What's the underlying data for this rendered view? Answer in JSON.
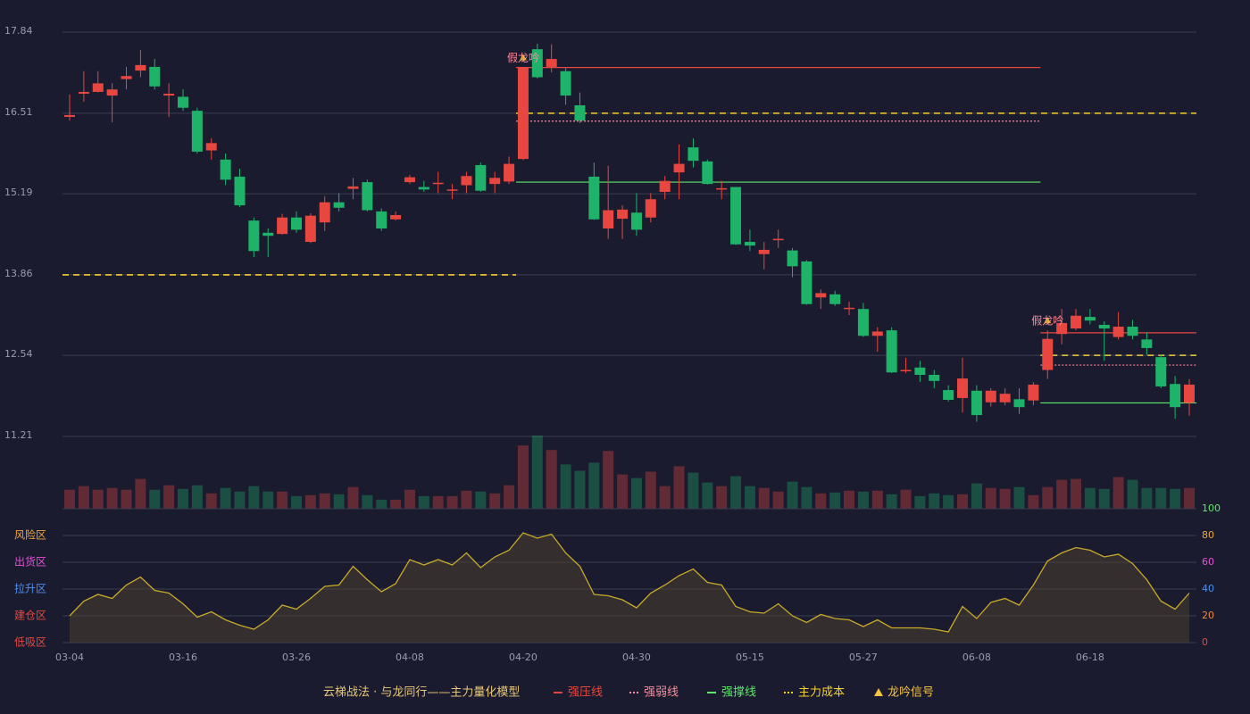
{
  "chart_data": {
    "type": "candlestick",
    "title": "云梯战法 · 与龙同行——主力量化模型",
    "categories": [
      "03-04",
      null,
      null,
      null,
      null,
      null,
      null,
      null,
      "03-16",
      null,
      null,
      null,
      null,
      null,
      null,
      null,
      "03-26",
      null,
      null,
      null,
      null,
      null,
      null,
      null,
      "04-08",
      null,
      null,
      null,
      null,
      null,
      null,
      null,
      "04-20",
      null,
      null,
      null,
      null,
      null,
      null,
      null,
      "04-30",
      null,
      null,
      null,
      null,
      null,
      null,
      null,
      "05-15",
      null,
      null,
      null,
      null,
      null,
      null,
      null,
      "05-27",
      null,
      null,
      null,
      null,
      null,
      null,
      null,
      "06-08",
      null,
      null,
      null,
      null,
      null,
      null,
      null,
      "06-18",
      null,
      null,
      null,
      null,
      null,
      null,
      null
    ],
    "up_color": "#e8473f",
    "down_color": "#1fb36a",
    "open": [
      16.45,
      16.83,
      16.86,
      16.8,
      17.07,
      17.21,
      17.27,
      16.8,
      16.78,
      16.55,
      15.9,
      15.75,
      15.47,
      14.75,
      14.55,
      14.53,
      14.8,
      14.4,
      14.72,
      15.05,
      15.27,
      15.38,
      14.9,
      14.77,
      15.38,
      15.3,
      15.36,
      15.24,
      15.33,
      15.66,
      15.35,
      15.39,
      15.76,
      17.56,
      17.27,
      17.2,
      16.64,
      15.47,
      14.62,
      14.78,
      14.88,
      14.8,
      15.22,
      15.54,
      15.95,
      15.72,
      15.26,
      15.3,
      14.4,
      14.2,
      14.44,
      14.26,
      14.08,
      13.49,
      13.54,
      13.31,
      13.3,
      12.86,
      12.95,
      12.28,
      12.34,
      12.22,
      11.97,
      11.84,
      11.96,
      11.77,
      11.77,
      11.82,
      11.8,
      12.3,
      12.89,
      12.98,
      13.17,
      13.04,
      12.84,
      13.01,
      12.8,
      12.51,
      12.07,
      11.76
    ],
    "high": [
      16.82,
      17.2,
      17.2,
      17.0,
      17.27,
      17.55,
      17.4,
      17.0,
      16.9,
      16.6,
      16.1,
      15.85,
      15.6,
      14.8,
      14.62,
      14.86,
      14.9,
      14.87,
      15.15,
      15.2,
      15.45,
      15.42,
      14.95,
      14.9,
      15.5,
      15.4,
      15.55,
      15.35,
      15.55,
      15.7,
      15.55,
      15.8,
      17.26,
      17.65,
      17.64,
      17.25,
      16.85,
      15.7,
      15.65,
      15.0,
      15.2,
      15.2,
      15.48,
      16.0,
      16.1,
      15.75,
      15.4,
      15.3,
      14.6,
      14.4,
      14.6,
      14.3,
      14.1,
      13.62,
      13.6,
      13.42,
      13.4,
      13.0,
      13.0,
      12.5,
      12.45,
      12.3,
      12.05,
      12.5,
      12.05,
      12.0,
      12.0,
      12.0,
      12.1,
      12.95,
      13.3,
      13.3,
      13.3,
      13.1,
      13.25,
      13.12,
      12.92,
      12.55,
      12.2,
      12.15
    ],
    "low": [
      16.39,
      16.7,
      16.85,
      16.36,
      16.9,
      17.1,
      16.9,
      16.45,
      16.55,
      15.85,
      15.75,
      15.33,
      14.97,
      14.15,
      14.15,
      14.52,
      14.55,
      14.38,
      14.58,
      14.9,
      15.1,
      14.9,
      14.58,
      14.75,
      15.35,
      15.22,
      15.2,
      15.1,
      15.2,
      15.22,
      15.2,
      15.35,
      15.74,
      17.08,
      17.18,
      16.65,
      16.35,
      14.76,
      14.45,
      14.45,
      14.5,
      14.72,
      15.1,
      15.1,
      15.62,
      15.34,
      15.1,
      14.35,
      14.25,
      13.95,
      14.3,
      13.82,
      13.37,
      13.3,
      13.35,
      13.2,
      12.84,
      12.6,
      12.25,
      12.25,
      12.1,
      12.0,
      11.78,
      11.6,
      11.45,
      11.7,
      11.72,
      11.58,
      11.72,
      12.15,
      12.72,
      12.95,
      13.05,
      12.45,
      12.8,
      12.8,
      12.55,
      12.0,
      11.5,
      11.55
    ],
    "close": [
      16.48,
      16.86,
      17.0,
      16.9,
      17.12,
      17.3,
      16.95,
      16.83,
      16.6,
      15.88,
      16.02,
      15.42,
      15.0,
      14.25,
      14.5,
      14.8,
      14.6,
      14.83,
      15.05,
      14.96,
      15.31,
      14.92,
      14.62,
      14.84,
      15.46,
      15.26,
      15.37,
      15.26,
      15.48,
      15.24,
      15.45,
      15.68,
      17.26,
      17.1,
      17.4,
      16.8,
      16.39,
      14.77,
      14.92,
      14.93,
      14.6,
      15.1,
      15.4,
      15.68,
      15.73,
      15.35,
      15.28,
      14.36,
      14.34,
      14.27,
      14.45,
      14.0,
      13.38,
      13.56,
      13.38,
      13.32,
      12.86,
      12.93,
      12.26,
      12.3,
      12.22,
      12.12,
      11.81,
      12.16,
      11.56,
      11.96,
      11.91,
      11.69,
      12.06,
      12.81,
      13.07,
      13.19,
      13.11,
      12.98,
      13.01,
      12.86,
      12.66,
      12.03,
      11.69,
      12.06
    ],
    "ylim": [
      11.21,
      17.84
    ],
    "yticks": [
      11.21,
      12.54,
      13.86,
      15.19,
      16.51,
      17.84
    ],
    "volume": [
      21,
      25,
      21,
      23,
      21,
      33,
      21,
      26,
      22,
      26,
      17,
      23,
      19,
      25,
      19,
      19,
      14,
      15,
      17,
      16,
      24,
      15,
      10,
      10,
      21,
      14,
      14,
      14,
      20,
      19,
      17,
      26,
      70,
      81,
      65,
      49,
      42,
      51,
      64,
      38,
      34,
      41,
      25,
      47,
      40,
      29,
      25,
      36,
      25,
      23,
      19,
      30,
      24,
      17,
      18,
      20,
      19,
      20,
      16,
      21,
      14,
      17,
      15,
      16,
      28,
      23,
      22,
      24,
      15,
      24,
      32,
      33,
      23,
      22,
      35,
      32,
      23,
      23,
      22,
      23
    ],
    "lines": [
      {
        "name": "强压线",
        "color": "#e8473f",
        "style": "solid",
        "segments": [
          {
            "start": 32,
            "end": 68,
            "value": 17.26
          },
          {
            "start": 69,
            "end": 79,
            "value": 12.91
          }
        ]
      },
      {
        "name": "强弱线",
        "color": "#ff8a9a",
        "style": "dotted",
        "segments": [
          {
            "start": 32,
            "end": 68,
            "value": 16.38
          },
          {
            "start": 69,
            "end": 79,
            "value": 12.38
          }
        ]
      },
      {
        "name": "强撑线",
        "color": "#5ee86a",
        "style": "solid",
        "segments": [
          {
            "start": 32,
            "end": 68,
            "value": 15.38
          },
          {
            "start": 69,
            "end": 79,
            "value": 11.76
          }
        ]
      },
      {
        "name": "主力成本",
        "color": "#f5d033",
        "style": "dashed",
        "segments": [
          {
            "start": 0,
            "end": 31,
            "value": 13.86
          },
          {
            "start": 32,
            "end": 79,
            "value": 16.51
          },
          {
            "start": 69,
            "end": 79,
            "value": 12.54
          }
        ]
      }
    ],
    "signal": {
      "name": "龙吟信号",
      "color": "#f5c242"
    },
    "annotations": [
      {
        "text": "假龙吟",
        "index": 32
      },
      {
        "text": "假龙吟",
        "index": 69
      }
    ],
    "indicator": {
      "color": "#c8a92a",
      "values": [
        20,
        31,
        36,
        33,
        43,
        49,
        39,
        37,
        29,
        19,
        23,
        17,
        13,
        10,
        17,
        28,
        25,
        33,
        42,
        43,
        57,
        47,
        38,
        44,
        62,
        58,
        62,
        58,
        67,
        56,
        64,
        69,
        82,
        78,
        81,
        67,
        57,
        36,
        35,
        32,
        26,
        37,
        43,
        50,
        55,
        45,
        43,
        27,
        23,
        22,
        29,
        20,
        15,
        21,
        18,
        17,
        12,
        17,
        11,
        11,
        11,
        10,
        8,
        27,
        18,
        30,
        33,
        28,
        43,
        61,
        67,
        71,
        69,
        64,
        66,
        59,
        47,
        31,
        25,
        37
      ],
      "ylim": [
        0,
        100
      ],
      "yticks": [
        0,
        20,
        40,
        60,
        80,
        100
      ],
      "ytick_colors": [
        "#e8473f",
        "#f08a3c",
        "#4d8ef0",
        "#e64fd8",
        "#f0a63c",
        "#5ee86a"
      ],
      "zones": [
        {
          "label": "风险区",
          "value": 80,
          "color": "#f0a63c"
        },
        {
          "label": "出货区",
          "value": 60,
          "color": "#e64fd8"
        },
        {
          "label": "拉升区",
          "value": 40,
          "color": "#4d8ef0"
        },
        {
          "label": "建仓区",
          "value": 20,
          "color": "#e8473f"
        },
        {
          "label": "低吸区",
          "value": 0,
          "color": "#e8473f"
        }
      ]
    }
  }
}
